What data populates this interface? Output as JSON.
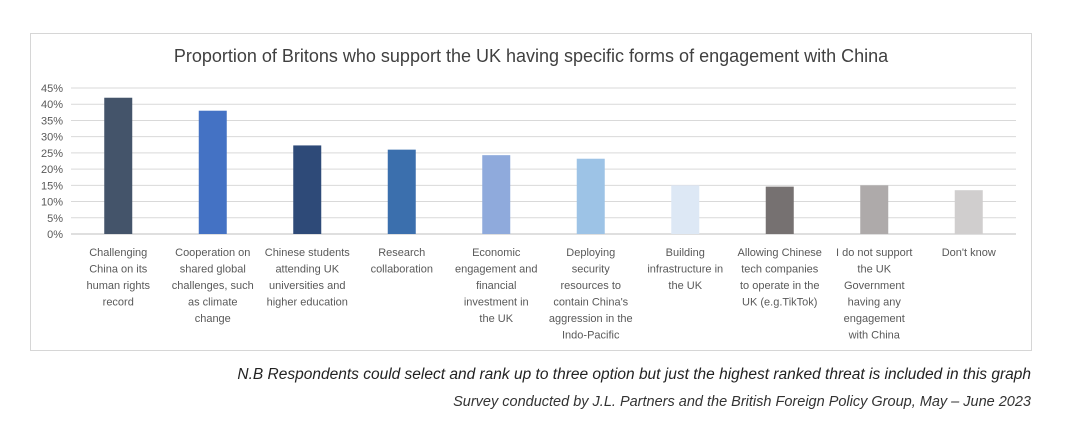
{
  "chart_data": {
    "type": "bar",
    "title": "Proportion of Britons who support the UK having specific forms of engagement with China",
    "xlabel": "",
    "ylabel": "",
    "ylim": [
      0,
      0.45
    ],
    "y_ticks": [
      "0%",
      "5%",
      "10%",
      "15%",
      "20%",
      "25%",
      "30%",
      "35%",
      "40%",
      "45%"
    ],
    "grid": true,
    "legend": "none",
    "categories": [
      "Challenging China on its human rights record",
      "Cooperation on shared global challenges, such as climate change",
      "Chinese students attending UK universities and higher education",
      "Research collaboration",
      "Economic engagement and financial investment in the UK",
      "Deploying security resources to contain China's aggression in the Indo-Pacific",
      "Building infrastructure in the UK",
      "Allowing Chinese tech companies to operate in the UK (e.g.TikTok)",
      "I do not support the UK Government having any engagement with China",
      "Don't know"
    ],
    "category_label_lines": [
      [
        "Challenging",
        "China on its",
        "human rights",
        "record"
      ],
      [
        "Cooperation on",
        "shared global",
        "challenges, such",
        "as climate",
        "change"
      ],
      [
        "Chinese students",
        "attending UK",
        "universities and",
        "higher education"
      ],
      [
        "Research",
        "collaboration"
      ],
      [
        "Economic",
        "engagement and",
        "financial",
        "investment in",
        "the UK"
      ],
      [
        "Deploying",
        "security",
        "resources to",
        "contain China's",
        "aggression in the",
        "Indo-Pacific"
      ],
      [
        "Building",
        "infrastructure in",
        "the UK"
      ],
      [
        "Allowing Chinese",
        "tech companies",
        "to operate in the",
        "UK (e.g.TikTok)"
      ],
      [
        "I do not support",
        "the UK",
        "Government",
        "having any",
        "engagement",
        "with China"
      ],
      [
        "Don't know"
      ]
    ],
    "values": [
      0.42,
      0.38,
      0.273,
      0.26,
      0.243,
      0.232,
      0.15,
      0.146,
      0.15,
      0.135
    ],
    "colors": [
      "#44546a",
      "#4472c4",
      "#2e4a78",
      "#3b6fad",
      "#8faadc",
      "#9dc3e6",
      "#dde8f5",
      "#767171",
      "#aeaaaa",
      "#d0cece"
    ]
  },
  "footnote": "N.B Respondents could select and rank up to three option but just the highest ranked threat is included in this graph",
  "source": "Survey conducted by J.L. Partners and the British Foreign Policy Group, May – June 2023"
}
